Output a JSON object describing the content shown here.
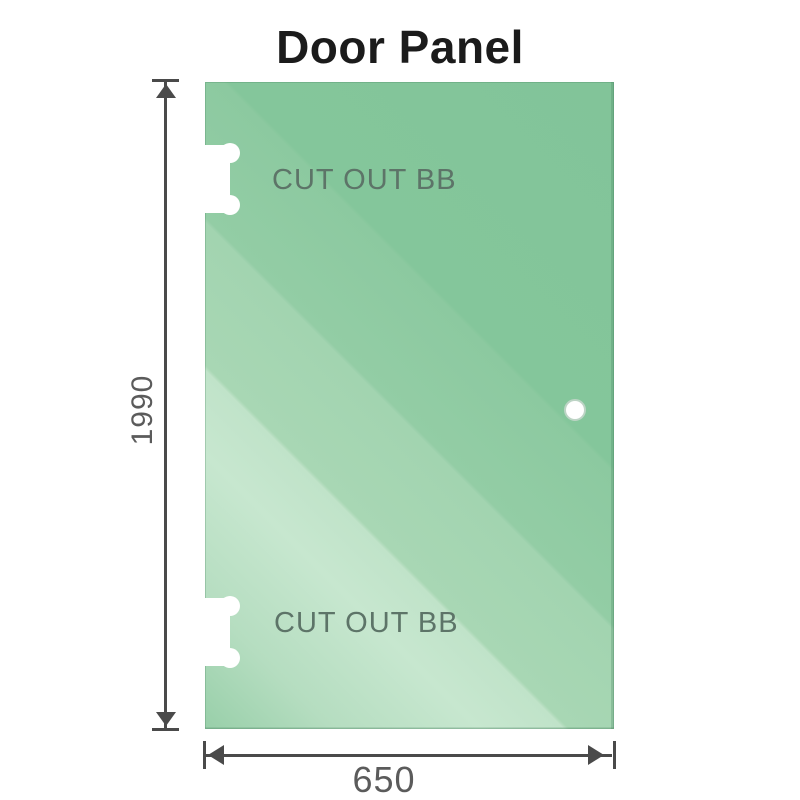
{
  "title": "Door Panel",
  "panel": {
    "kind": "glass-door-panel",
    "glass_color": "#8fcba2",
    "cutouts": [
      {
        "label": "CUT OUT BB",
        "position": "top-left"
      },
      {
        "label": "CUT OUT BB",
        "position": "bottom-left"
      }
    ],
    "handle_hole": {
      "present": true,
      "side": "right"
    }
  },
  "dimensions": {
    "height": {
      "value": "1990"
    },
    "width": {
      "value": "650"
    }
  },
  "colors": {
    "dimension_line": "#4a4a4a",
    "dimension_text": "#5b5b5b",
    "cutout_text": "#5d7468",
    "background": "#ffffff"
  }
}
